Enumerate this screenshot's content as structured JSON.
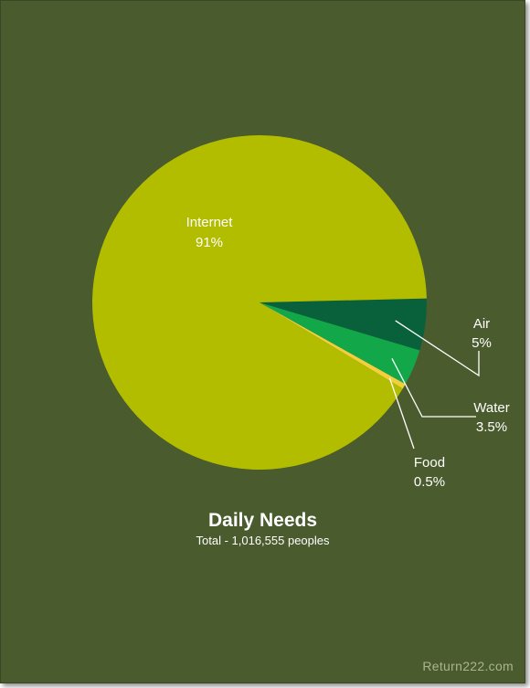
{
  "chart_data": {
    "type": "pie",
    "title": "Daily Needs",
    "subtitle": "Total - 1,016,555 peoples",
    "slices": [
      {
        "label": "Internet",
        "value_label": "91%",
        "value": 91,
        "color": "#b2bd00"
      },
      {
        "label": "Air",
        "value_label": "5%",
        "value": 5,
        "color": "#08613b"
      },
      {
        "label": "Water",
        "value_label": "3.5%",
        "value": 3.5,
        "color": "#12a84a"
      },
      {
        "label": "Food",
        "value_label": "0.5%",
        "value": 0.5,
        "color": "#f2cf3c"
      }
    ],
    "background_color": "#4a5b2d",
    "leader_line_color": "#ffffff"
  },
  "watermark": "Return222.com"
}
